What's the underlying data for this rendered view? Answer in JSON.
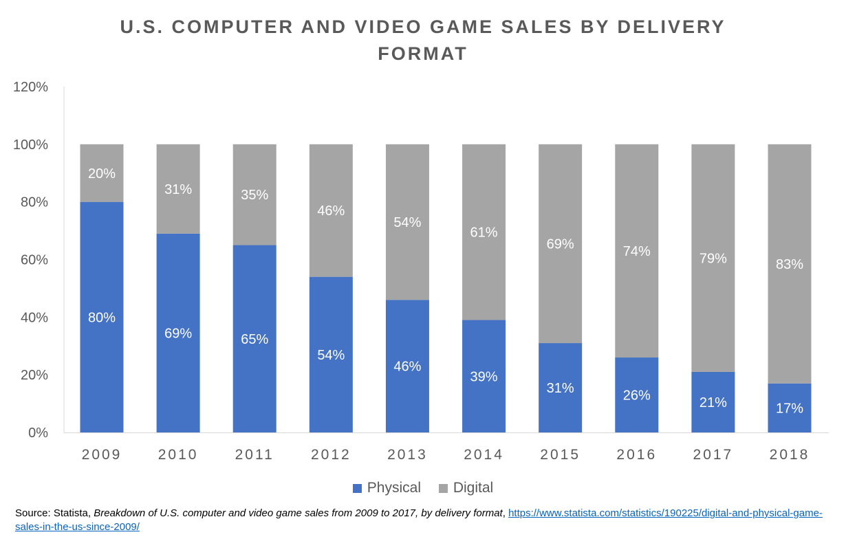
{
  "chart_data": {
    "type": "bar",
    "stacked": true,
    "title": "U.S. COMPUTER AND VIDEO GAME SALES BY DELIVERY FORMAT",
    "title_lines": [
      "U.S. COMPUTER  AND VIDEO GAME SALES BY DELIVERY",
      "FORMAT"
    ],
    "categories": [
      "2009",
      "2010",
      "2011",
      "2012",
      "2013",
      "2014",
      "2015",
      "2016",
      "2017",
      "2018"
    ],
    "series": [
      {
        "name": "Physical",
        "color": "#4472C4",
        "values": [
          80,
          69,
          65,
          54,
          46,
          39,
          31,
          26,
          21,
          17
        ]
      },
      {
        "name": "Digital",
        "color": "#A5A5A5",
        "values": [
          20,
          31,
          35,
          46,
          54,
          61,
          69,
          74,
          79,
          83
        ]
      }
    ],
    "data_label_suffix": "%",
    "yticks": [
      "0%",
      "20%",
      "40%",
      "60%",
      "80%",
      "100%",
      "120%"
    ],
    "ylim": [
      0,
      120
    ],
    "grid": false,
    "legend_position": "bottom",
    "xlabel": "",
    "ylabel": ""
  },
  "source": {
    "prefix": "Source: Statista, ",
    "title": "Breakdown of U.S. computer and video game sales from 2009 to 2017, by delivery format",
    "separator": ", ",
    "url": "https://www.statista.com/statistics/190225/digital-and-physical-game-sales-in-the-us-since-2009/"
  }
}
